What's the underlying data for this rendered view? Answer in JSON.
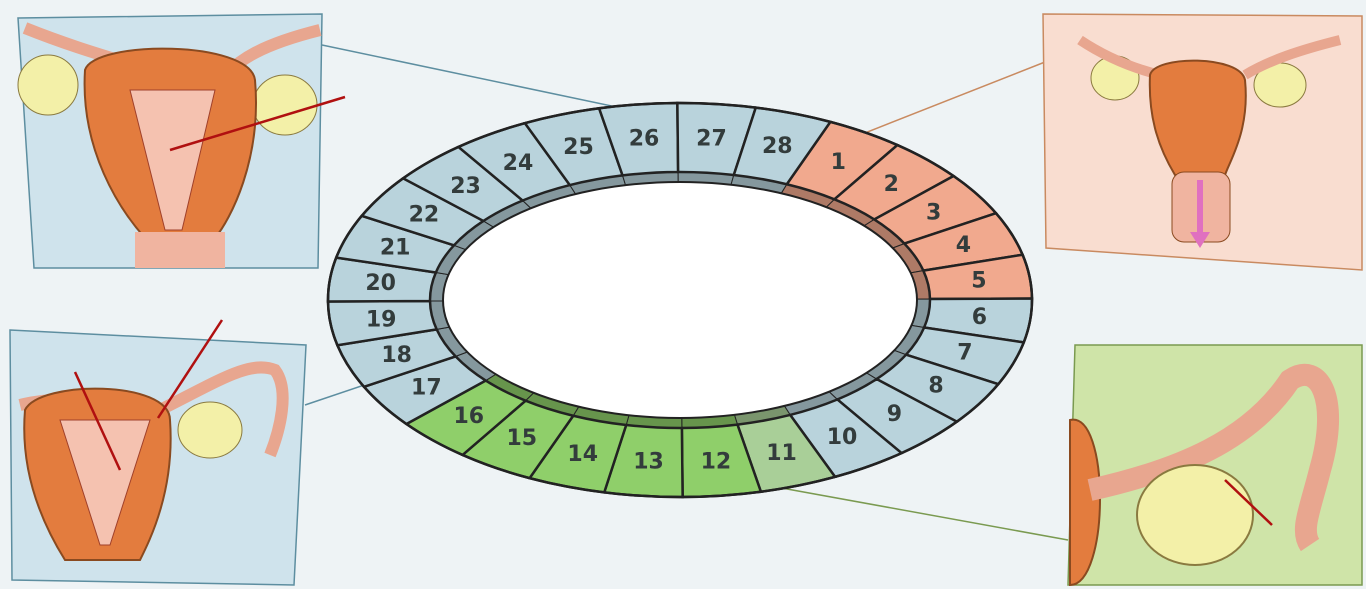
{
  "days": [
    {
      "label": 1,
      "color": "#f1a98e"
    },
    {
      "label": 2,
      "color": "#f1a98e"
    },
    {
      "label": 3,
      "color": "#f1a98e"
    },
    {
      "label": 4,
      "color": "#f1a98e"
    },
    {
      "label": 5,
      "color": "#f1a98e"
    },
    {
      "label": 6,
      "color": "#b9d3dc"
    },
    {
      "label": 7,
      "color": "#b9d3dc"
    },
    {
      "label": 8,
      "color": "#b9d3dc"
    },
    {
      "label": 9,
      "color": "#b9d3dc"
    },
    {
      "label": 10,
      "color": "#b9d3dc"
    },
    {
      "label": 11,
      "color": "#a9cf98"
    },
    {
      "label": 12,
      "color": "#8fcf6a"
    },
    {
      "label": 13,
      "color": "#8fcf6a"
    },
    {
      "label": 14,
      "color": "#8fcf6a"
    },
    {
      "label": 15,
      "color": "#8fcf6a"
    },
    {
      "label": 16,
      "color": "#8fcf6a"
    },
    {
      "label": 17,
      "color": "#b9d3dc"
    },
    {
      "label": 18,
      "color": "#b9d3dc"
    },
    {
      "label": 19,
      "color": "#b9d3dc"
    },
    {
      "label": 20,
      "color": "#b9d3dc"
    },
    {
      "label": 21,
      "color": "#b9d3dc"
    },
    {
      "label": 22,
      "color": "#b9d3dc"
    },
    {
      "label": 23,
      "color": "#b9d3dc"
    },
    {
      "label": 24,
      "color": "#b9d3dc"
    },
    {
      "label": 25,
      "color": "#b9d3dc"
    },
    {
      "label": 26,
      "color": "#b9d3dc"
    },
    {
      "label": 27,
      "color": "#b9d3dc"
    },
    {
      "label": 28,
      "color": "#b9d3dc"
    }
  ]
}
